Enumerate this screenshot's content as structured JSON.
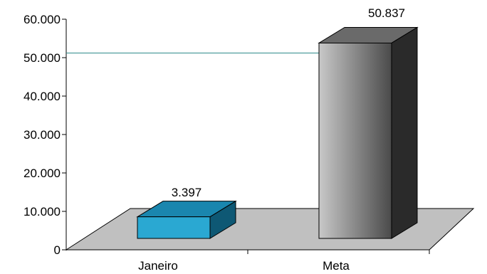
{
  "chart_data": {
    "type": "bar",
    "categories": [
      "Janeiro",
      "Meta"
    ],
    "values": [
      3397,
      50837
    ],
    "data_labels": [
      "3.397",
      "50.837"
    ],
    "ylim": [
      0,
      60000
    ],
    "y_ticks": [
      0,
      10000,
      20000,
      30000,
      40000,
      50000,
      60000
    ],
    "y_tick_labels": [
      "0",
      "10.000",
      "20.000",
      "30.000",
      "40.000",
      "50.000",
      "60.000"
    ],
    "title": "",
    "xlabel": "",
    "ylabel": "",
    "grid": false,
    "legend": "none",
    "reference_line": 50837,
    "colors": {
      "janeiro_front": "#2aa8d2",
      "janeiro_top": "#1a86ae",
      "janeiro_side": "#0e5874",
      "meta_front_light": "#c8c8c8",
      "meta_front_dark": "#4a4a4a",
      "meta_top": "#6a6a6a",
      "meta_side": "#2a2a2a",
      "floor": "#c0c0c0",
      "reference_line": "#2e8b8b"
    }
  }
}
